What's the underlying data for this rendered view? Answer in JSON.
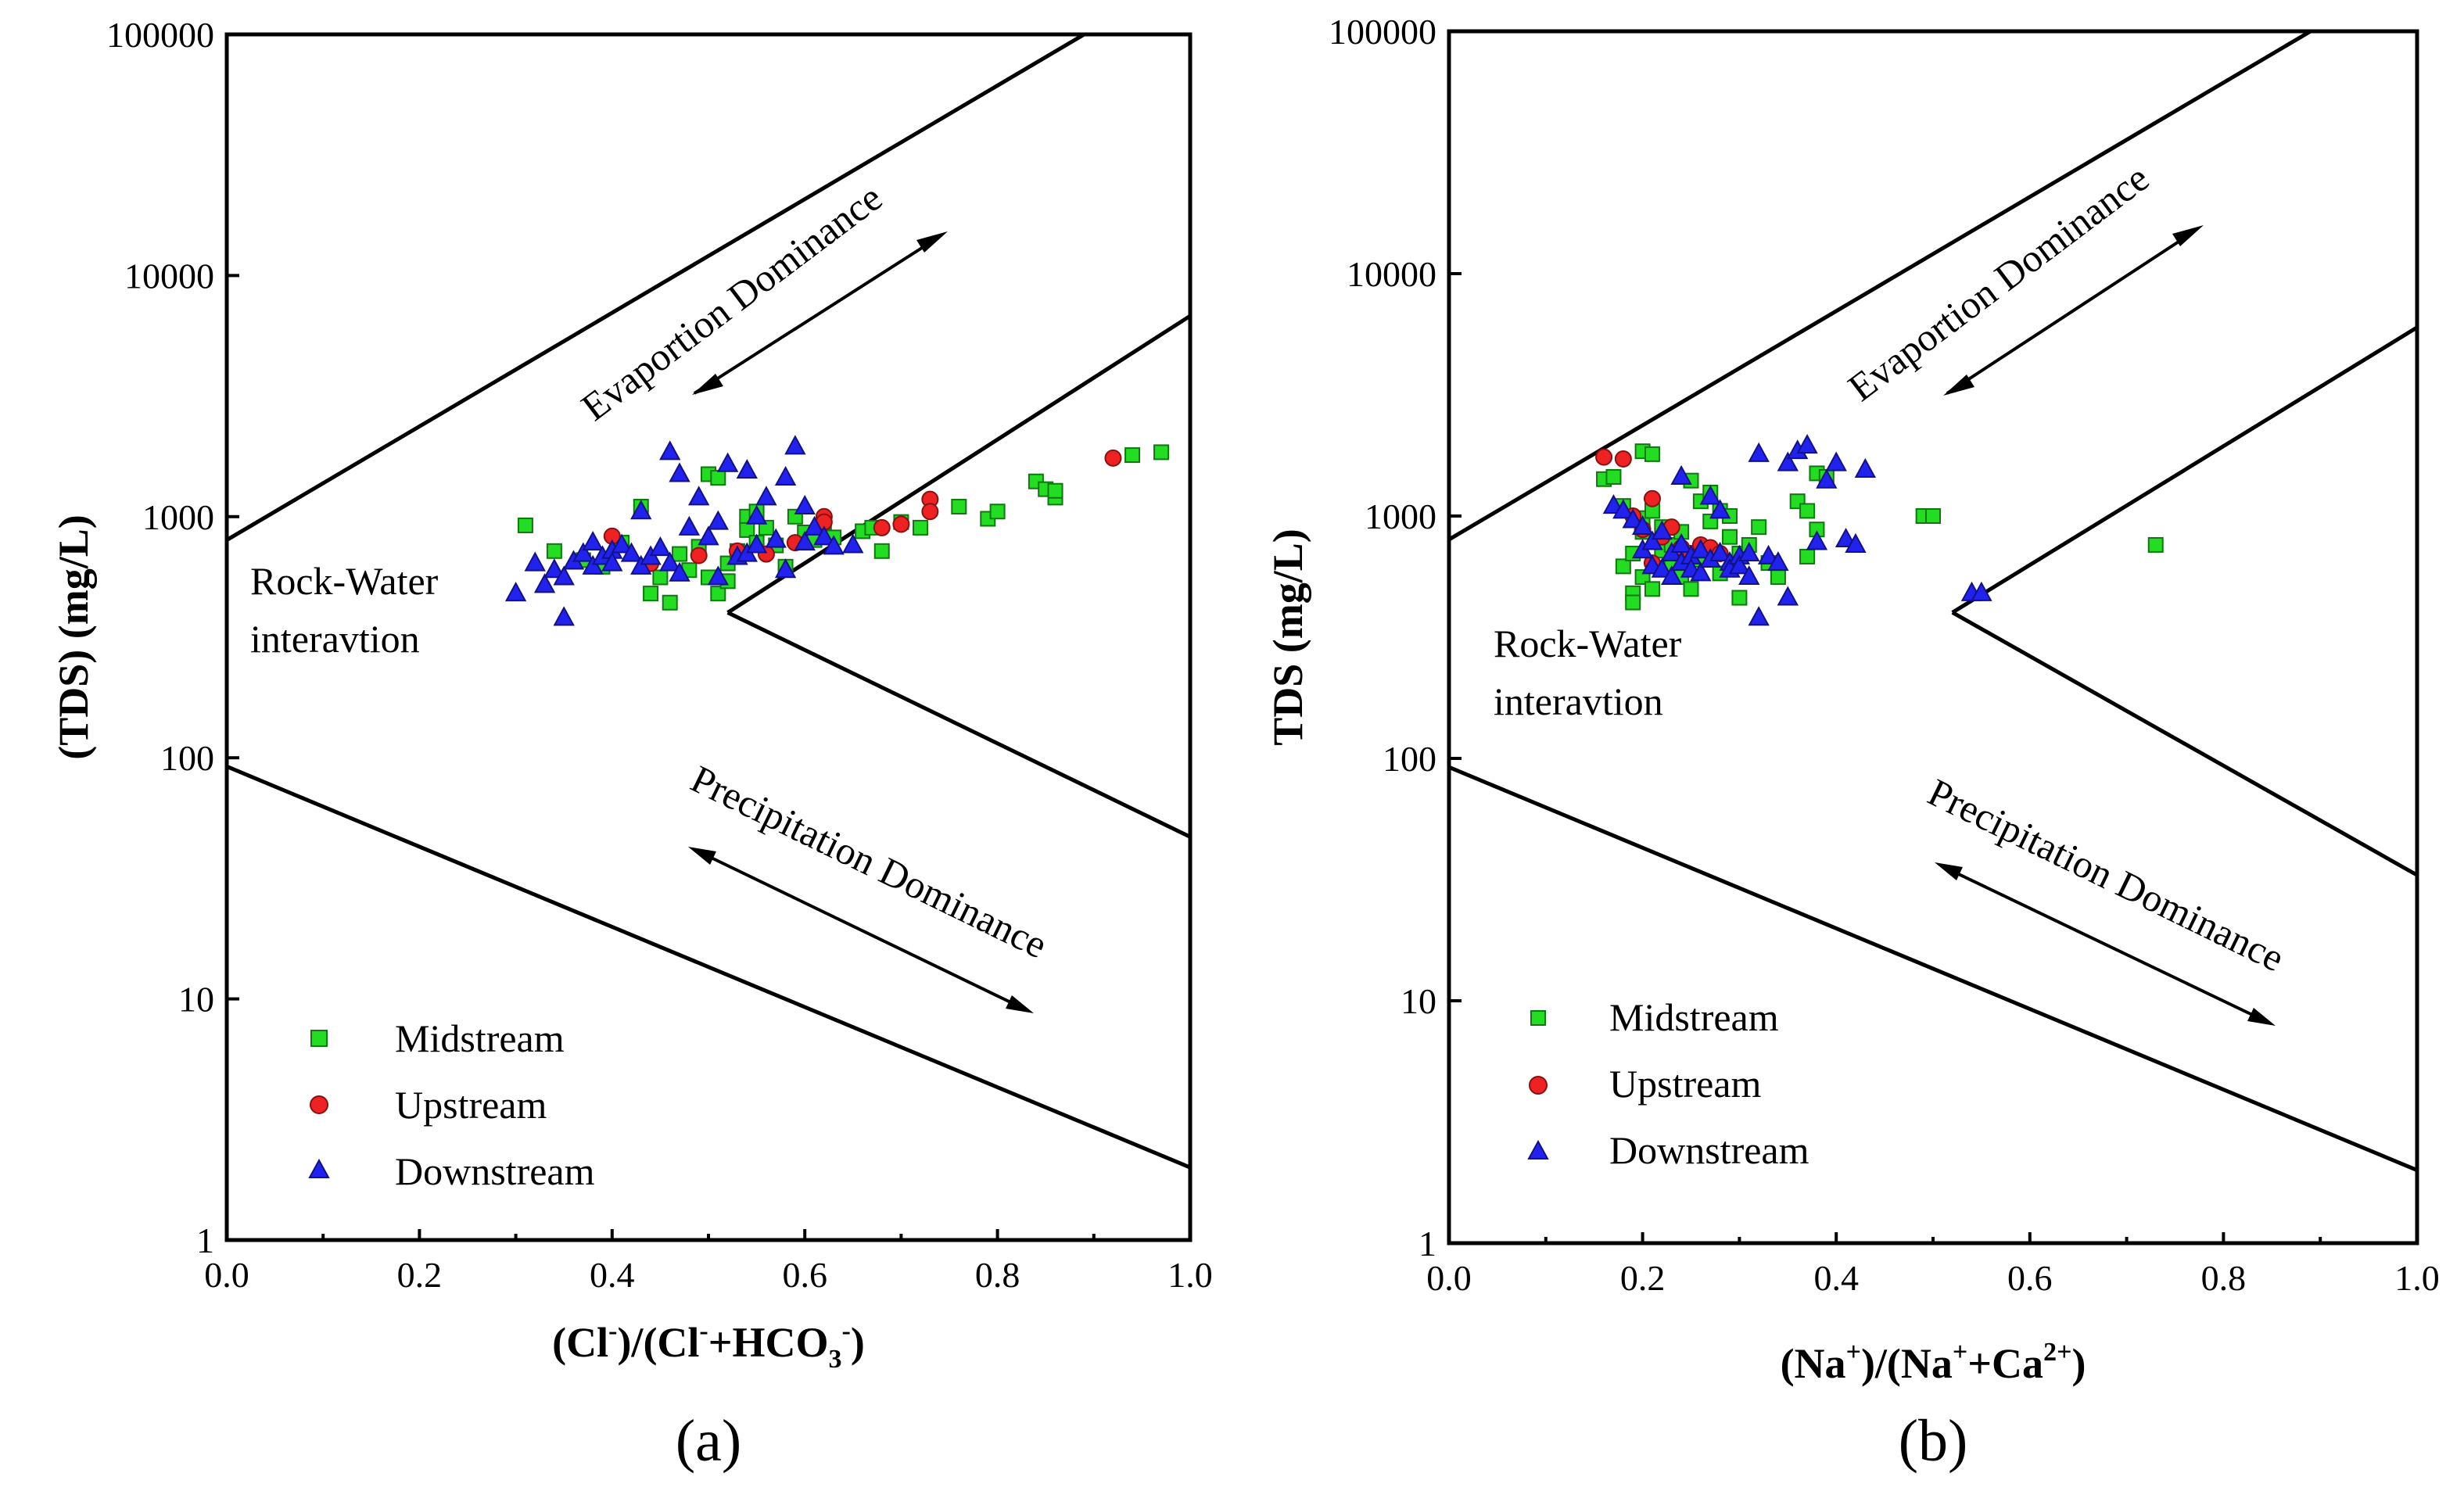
{
  "chart_data": [
    {
      "type": "scatter",
      "panel_label": "(a)",
      "xlabel": {
        "main": "(Cl",
        "sup1": "-",
        "mid": ")/(Cl",
        "sup2": "-",
        "tail": "+HCO",
        "sub": "3",
        "sup3": "-",
        "close": ")"
      },
      "ylabel": "(TDS) (mg/L)",
      "x_ticks": [
        "0.0",
        "0.2",
        "0.4",
        "0.6",
        "0.8",
        "1.0"
      ],
      "y_ticks": [
        "1",
        "10",
        "100",
        "1000",
        "10000",
        "100000"
      ],
      "xlim": [
        0,
        1
      ],
      "ylim": [
        1,
        100000
      ],
      "y_scale": "log",
      "regions": {
        "evaporation": "Evaportion Dominance",
        "rock_line1": "Rock-Water",
        "rock_line2": "interavtion",
        "precipitation": "Precipitation Dominance"
      },
      "boundaries": [
        [
          [
            0,
            800
          ],
          [
            0.89,
            100000
          ]
        ],
        [
          [
            0.52,
            400
          ],
          [
            1.0,
            6800
          ]
        ],
        [
          [
            0.52,
            400
          ],
          [
            1.0,
            47
          ]
        ],
        [
          [
            0,
            92
          ],
          [
            1.0,
            2
          ]
        ]
      ],
      "series": [
        {
          "name": "Midstream",
          "marker": "square",
          "color": "#22dd22",
          "points": [
            [
              0.31,
              920
            ],
            [
              0.34,
              720
            ],
            [
              0.37,
              660
            ],
            [
              0.39,
              620
            ],
            [
              0.41,
              780
            ],
            [
              0.43,
              1100
            ],
            [
              0.44,
              480
            ],
            [
              0.45,
              560
            ],
            [
              0.46,
              440
            ],
            [
              0.47,
              700
            ],
            [
              0.48,
              600
            ],
            [
              0.49,
              750
            ],
            [
              0.5,
              1500
            ],
            [
              0.51,
              1450
            ],
            [
              0.5,
              560
            ],
            [
              0.51,
              480
            ],
            [
              0.52,
              540
            ],
            [
              0.52,
              640
            ],
            [
              0.53,
              720
            ],
            [
              0.54,
              1000
            ],
            [
              0.54,
              880
            ],
            [
              0.55,
              1050
            ],
            [
              0.55,
              780
            ],
            [
              0.56,
              900
            ],
            [
              0.57,
              760
            ],
            [
              0.58,
              620
            ],
            [
              0.59,
              1000
            ],
            [
              0.6,
              860
            ],
            [
              0.61,
              800
            ],
            [
              0.62,
              950
            ],
            [
              0.63,
              820
            ],
            [
              0.66,
              870
            ],
            [
              0.67,
              900
            ],
            [
              0.68,
              720
            ],
            [
              0.7,
              950
            ],
            [
              0.72,
              900
            ],
            [
              0.76,
              1100
            ],
            [
              0.79,
              980
            ],
            [
              0.8,
              1050
            ],
            [
              0.84,
              1400
            ],
            [
              0.85,
              1300
            ],
            [
              0.86,
              1200
            ],
            [
              0.86,
              1280
            ],
            [
              0.94,
              1800
            ],
            [
              0.97,
              1850
            ]
          ]
        },
        {
          "name": "Upstream",
          "marker": "circle",
          "color": "#ee2222",
          "points": [
            [
              0.4,
              830
            ],
            [
              0.44,
              640
            ],
            [
              0.49,
              690
            ],
            [
              0.53,
              720
            ],
            [
              0.56,
              700
            ],
            [
              0.59,
              780
            ],
            [
              0.62,
              1000
            ],
            [
              0.62,
              950
            ],
            [
              0.68,
              900
            ],
            [
              0.7,
              930
            ],
            [
              0.73,
              1180
            ],
            [
              0.73,
              1050
            ],
            [
              0.92,
              1750
            ]
          ]
        },
        {
          "name": "Downstream",
          "marker": "triangle",
          "color": "#2222ee",
          "points": [
            [
              0.3,
              480
            ],
            [
              0.32,
              640
            ],
            [
              0.33,
              520
            ],
            [
              0.34,
              600
            ],
            [
              0.35,
              380
            ],
            [
              0.35,
              560
            ],
            [
              0.36,
              650
            ],
            [
              0.37,
              700
            ],
            [
              0.38,
              620
            ],
            [
              0.38,
              780
            ],
            [
              0.39,
              680
            ],
            [
              0.4,
              720
            ],
            [
              0.4,
              640
            ],
            [
              0.41,
              760
            ],
            [
              0.42,
              700
            ],
            [
              0.43,
              1050
            ],
            [
              0.43,
              620
            ],
            [
              0.44,
              680
            ],
            [
              0.45,
              740
            ],
            [
              0.46,
              1850
            ],
            [
              0.46,
              640
            ],
            [
              0.47,
              1500
            ],
            [
              0.47,
              580
            ],
            [
              0.48,
              900
            ],
            [
              0.49,
              1200
            ],
            [
              0.5,
              820
            ],
            [
              0.51,
              950
            ],
            [
              0.51,
              560
            ],
            [
              0.52,
              1650
            ],
            [
              0.53,
              680
            ],
            [
              0.54,
              1550
            ],
            [
              0.54,
              700
            ],
            [
              0.55,
              1000
            ],
            [
              0.55,
              760
            ],
            [
              0.56,
              1200
            ],
            [
              0.57,
              800
            ],
            [
              0.58,
              1450
            ],
            [
              0.58,
              600
            ],
            [
              0.59,
              1950
            ],
            [
              0.6,
              1100
            ],
            [
              0.6,
              780
            ],
            [
              0.61,
              900
            ],
            [
              0.62,
              820
            ],
            [
              0.63,
              750
            ],
            [
              0.65,
              760
            ]
          ]
        }
      ]
    },
    {
      "type": "scatter",
      "panel_label": "(b)",
      "xlabel": {
        "main": "(Na",
        "sup1": "+",
        "mid": ")/(Na",
        "sup2": "+",
        "tail": "+Ca",
        "sup3": "2+",
        "close": ")"
      },
      "ylabel": "TDS (mg/L)",
      "x_ticks": [
        "0.0",
        "0.2",
        "0.4",
        "0.6",
        "0.8",
        "1.0"
      ],
      "y_ticks": [
        "1",
        "10",
        "100",
        "1000",
        "10000",
        "100000"
      ],
      "xlim": [
        0,
        1
      ],
      "ylim": [
        1,
        100000
      ],
      "y_scale": "log",
      "regions": {
        "evaporation": "Evaportion Dominance",
        "rock_line1": "Rock-Water",
        "rock_line2": "interavtion",
        "precipitation": "Precipitation Dominance"
      },
      "boundaries": [
        [
          [
            0,
            800
          ],
          [
            0.89,
            100000
          ]
        ],
        [
          [
            0.52,
            400
          ],
          [
            1.0,
            6000
          ]
        ],
        [
          [
            0.52,
            400
          ],
          [
            1.0,
            33
          ]
        ],
        [
          [
            0,
            92
          ],
          [
            1.0,
            2
          ]
        ]
      ],
      "series": [
        {
          "name": "Midstream",
          "marker": "square",
          "color": "#22dd22",
          "points": [
            [
              0.16,
              1420
            ],
            [
              0.17,
              1450
            ],
            [
              0.18,
              1100
            ],
            [
              0.18,
              620
            ],
            [
              0.19,
              700
            ],
            [
              0.19,
              480
            ],
            [
              0.19,
              440
            ],
            [
              0.2,
              1850
            ],
            [
              0.2,
              980
            ],
            [
              0.2,
              860
            ],
            [
              0.2,
              560
            ],
            [
              0.21,
              1800
            ],
            [
              0.21,
              1050
            ],
            [
              0.21,
              500
            ],
            [
              0.22,
              900
            ],
            [
              0.22,
              720
            ],
            [
              0.23,
              620
            ],
            [
              0.23,
              760
            ],
            [
              0.24,
              860
            ],
            [
              0.24,
              560
            ],
            [
              0.25,
              1400
            ],
            [
              0.25,
              500
            ],
            [
              0.26,
              1150
            ],
            [
              0.26,
              660
            ],
            [
              0.27,
              1250
            ],
            [
              0.27,
              950
            ],
            [
              0.28,
              1050
            ],
            [
              0.28,
              580
            ],
            [
              0.29,
              820
            ],
            [
              0.29,
              1000
            ],
            [
              0.3,
              700
            ],
            [
              0.3,
              460
            ],
            [
              0.31,
              760
            ],
            [
              0.32,
              900
            ],
            [
              0.33,
              640
            ],
            [
              0.34,
              560
            ],
            [
              0.36,
              1150
            ],
            [
              0.37,
              1050
            ],
            [
              0.37,
              680
            ],
            [
              0.38,
              880
            ],
            [
              0.38,
              1500
            ],
            [
              0.39,
              1450
            ],
            [
              0.49,
              1000
            ],
            [
              0.5,
              1000
            ],
            [
              0.73,
              760
            ]
          ]
        },
        {
          "name": "Upstream",
          "marker": "circle",
          "color": "#ee2222",
          "points": [
            [
              0.16,
              1750
            ],
            [
              0.18,
              1720
            ],
            [
              0.19,
              1000
            ],
            [
              0.2,
              880
            ],
            [
              0.21,
              1180
            ],
            [
              0.21,
              640
            ],
            [
              0.22,
              820
            ],
            [
              0.23,
              900
            ],
            [
              0.24,
              740
            ],
            [
              0.25,
              700
            ],
            [
              0.26,
              760
            ],
            [
              0.27,
              740
            ],
            [
              0.28,
              700
            ]
          ]
        },
        {
          "name": "Downstream",
          "marker": "triangle",
          "color": "#2222ee",
          "points": [
            [
              0.17,
              1100
            ],
            [
              0.18,
              1050
            ],
            [
              0.19,
              960
            ],
            [
              0.2,
              900
            ],
            [
              0.2,
              720
            ],
            [
              0.21,
              780
            ],
            [
              0.21,
              620
            ],
            [
              0.22,
              860
            ],
            [
              0.22,
              600
            ],
            [
              0.23,
              700
            ],
            [
              0.23,
              560
            ],
            [
              0.24,
              1450
            ],
            [
              0.24,
              760
            ],
            [
              0.24,
              640
            ],
            [
              0.25,
              680
            ],
            [
              0.25,
              600
            ],
            [
              0.26,
              720
            ],
            [
              0.26,
              580
            ],
            [
              0.27,
              1200
            ],
            [
              0.27,
              660
            ],
            [
              0.28,
              1050
            ],
            [
              0.28,
              700
            ],
            [
              0.29,
              640
            ],
            [
              0.29,
              600
            ],
            [
              0.3,
              680
            ],
            [
              0.3,
              620
            ],
            [
              0.31,
              700
            ],
            [
              0.31,
              560
            ],
            [
              0.32,
              380
            ],
            [
              0.32,
              1800
            ],
            [
              0.33,
              680
            ],
            [
              0.34,
              640
            ],
            [
              0.35,
              460
            ],
            [
              0.35,
              1650
            ],
            [
              0.36,
              1850
            ],
            [
              0.37,
              1950
            ],
            [
              0.38,
              780
            ],
            [
              0.39,
              1400
            ],
            [
              0.4,
              1650
            ],
            [
              0.41,
              800
            ],
            [
              0.42,
              760
            ],
            [
              0.43,
              1550
            ],
            [
              0.54,
              480
            ],
            [
              0.55,
              480
            ]
          ]
        }
      ]
    }
  ]
}
